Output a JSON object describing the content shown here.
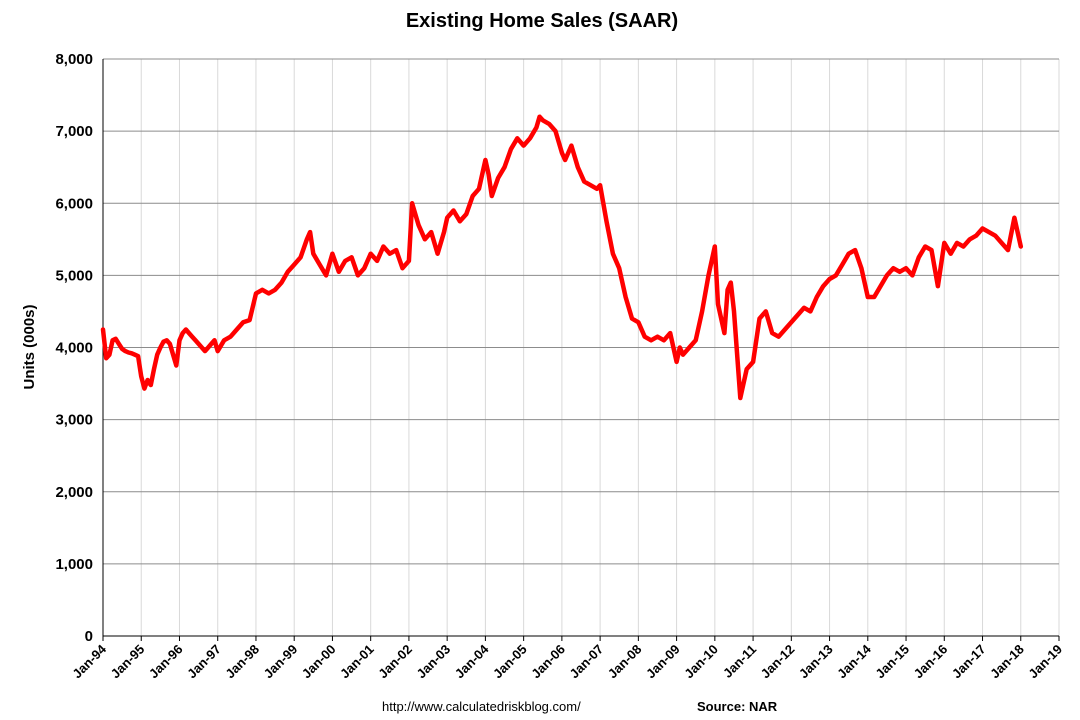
{
  "chart_data": {
    "type": "line",
    "title": "Existing Home Sales (SAAR)",
    "ylabel": "Units (000s)",
    "xlabel": "",
    "ylim": [
      0,
      8000
    ],
    "xlim": [
      "1994-01",
      "2019-01"
    ],
    "grid": {
      "horizontal": true,
      "vertical": true
    },
    "legend": "none",
    "y_ticks": [
      0,
      1000,
      2000,
      3000,
      4000,
      5000,
      6000,
      7000,
      8000
    ],
    "y_tick_labels": [
      "0",
      "1,000",
      "2,000",
      "3,000",
      "4,000",
      "5,000",
      "6,000",
      "7,000",
      "8,000"
    ],
    "x_tick_labels": [
      "Jan-94",
      "Jan-95",
      "Jan-96",
      "Jan-97",
      "Jan-98",
      "Jan-99",
      "Jan-00",
      "Jan-01",
      "Jan-02",
      "Jan-03",
      "Jan-04",
      "Jan-05",
      "Jan-06",
      "Jan-07",
      "Jan-08",
      "Jan-09",
      "Jan-10",
      "Jan-11",
      "Jan-12",
      "Jan-13",
      "Jan-14",
      "Jan-15",
      "Jan-16",
      "Jan-17",
      "Jan-18",
      "Jan-19"
    ],
    "series": [
      {
        "color": "#ff0000",
        "x": [
          "1994-01",
          "1994-02",
          "1994-03",
          "1994-04",
          "1994-05",
          "1994-06",
          "1994-07",
          "1994-08",
          "1994-09",
          "1994-10",
          "1994-11",
          "1994-12",
          "1995-01",
          "1995-02",
          "1995-03",
          "1995-04",
          "1995-05",
          "1995-06",
          "1995-07",
          "1995-08",
          "1995-09",
          "1995-10",
          "1995-11",
          "1995-12",
          "1996-01",
          "1996-02",
          "1996-03",
          "1996-04",
          "1996-05",
          "1996-06",
          "1996-07",
          "1996-08",
          "1996-09",
          "1996-10",
          "1996-11",
          "1996-12",
          "1997-01",
          "1997-03",
          "1997-05",
          "1997-07",
          "1997-09",
          "1997-11",
          "1998-01",
          "1998-03",
          "1998-05",
          "1998-07",
          "1998-09",
          "1998-11",
          "1999-01",
          "1999-03",
          "1999-05",
          "1999-06",
          "1999-07",
          "1999-09",
          "1999-11",
          "2000-01",
          "2000-03",
          "2000-05",
          "2000-07",
          "2000-09",
          "2000-11",
          "2001-01",
          "2001-03",
          "2001-05",
          "2001-07",
          "2001-09",
          "2001-11",
          "2002-01",
          "2002-02",
          "2002-04",
          "2002-06",
          "2002-08",
          "2002-10",
          "2002-12",
          "2003-01",
          "2003-03",
          "2003-05",
          "2003-07",
          "2003-09",
          "2003-11",
          "2004-01",
          "2004-02",
          "2004-03",
          "2004-05",
          "2004-07",
          "2004-09",
          "2004-11",
          "2005-01",
          "2005-03",
          "2005-05",
          "2005-06",
          "2005-07",
          "2005-09",
          "2005-11",
          "2006-01",
          "2006-02",
          "2006-04",
          "2006-06",
          "2006-08",
          "2006-10",
          "2006-12",
          "2007-01",
          "2007-03",
          "2007-05",
          "2007-07",
          "2007-09",
          "2007-11",
          "2008-01",
          "2008-03",
          "2008-05",
          "2008-07",
          "2008-09",
          "2008-11",
          "2009-01",
          "2009-02",
          "2009-03",
          "2009-05",
          "2009-07",
          "2009-09",
          "2009-11",
          "2010-01",
          "2010-02",
          "2010-04",
          "2010-05",
          "2010-06",
          "2010-07",
          "2010-09",
          "2010-11",
          "2011-01",
          "2011-03",
          "2011-05",
          "2011-07",
          "2011-09",
          "2011-11",
          "2012-01",
          "2012-03",
          "2012-05",
          "2012-07",
          "2012-09",
          "2012-11",
          "2013-01",
          "2013-03",
          "2013-05",
          "2013-07",
          "2013-09",
          "2013-11",
          "2014-01",
          "2014-03",
          "2014-05",
          "2014-07",
          "2014-09",
          "2014-11",
          "2015-01",
          "2015-03",
          "2015-05",
          "2015-07",
          "2015-09",
          "2015-11",
          "2016-01",
          "2016-03",
          "2016-05",
          "2016-07",
          "2016-09",
          "2016-11",
          "2017-01",
          "2017-03",
          "2017-05",
          "2017-07",
          "2017-09",
          "2017-11",
          "2017-12",
          "2018-01"
        ],
        "values": [
          4250,
          3850,
          3900,
          4100,
          4120,
          4050,
          3980,
          3950,
          3930,
          3920,
          3900,
          3880,
          3600,
          3430,
          3550,
          3480,
          3700,
          3900,
          4000,
          4080,
          4100,
          4050,
          3900,
          3750,
          4100,
          4200,
          4250,
          4200,
          4150,
          4100,
          4050,
          4000,
          3950,
          4000,
          4050,
          4100,
          3950,
          4100,
          4150,
          4250,
          4350,
          4380,
          4750,
          4800,
          4750,
          4800,
          4900,
          5050,
          5150,
          5250,
          5500,
          5600,
          5300,
          5150,
          5000,
          5300,
          5050,
          5200,
          5250,
          5000,
          5100,
          5300,
          5200,
          5400,
          5300,
          5350,
          5100,
          5200,
          6000,
          5700,
          5500,
          5600,
          5300,
          5600,
          5800,
          5900,
          5750,
          5850,
          6100,
          6200,
          6600,
          6400,
          6100,
          6350,
          6500,
          6750,
          6900,
          6800,
          6900,
          7050,
          7200,
          7150,
          7100,
          7000,
          6700,
          6600,
          6800,
          6500,
          6300,
          6250,
          6200,
          6250,
          5750,
          5300,
          5100,
          4700,
          4400,
          4350,
          4150,
          4100,
          4150,
          4100,
          4200,
          3800,
          4000,
          3900,
          4000,
          4100,
          4500,
          5000,
          5400,
          4600,
          4200,
          4800,
          4900,
          4500,
          3300,
          3700,
          3800,
          4400,
          4500,
          4200,
          4150,
          4250,
          4350,
          4450,
          4550,
          4500,
          4700,
          4850,
          4950,
          5000,
          5150,
          5300,
          5350,
          5100,
          4700,
          4700,
          4850,
          5000,
          5100,
          5050,
          5100,
          5000,
          5250,
          5400,
          5350,
          4850,
          5450,
          5300,
          5450,
          5400,
          5500,
          5550,
          5650,
          5600,
          5550,
          5450,
          5350,
          5800,
          5600,
          5400
        ]
      }
    ]
  },
  "footer": {
    "url": "http://www.calculatedriskblog.com/",
    "source": "Source: NAR"
  }
}
